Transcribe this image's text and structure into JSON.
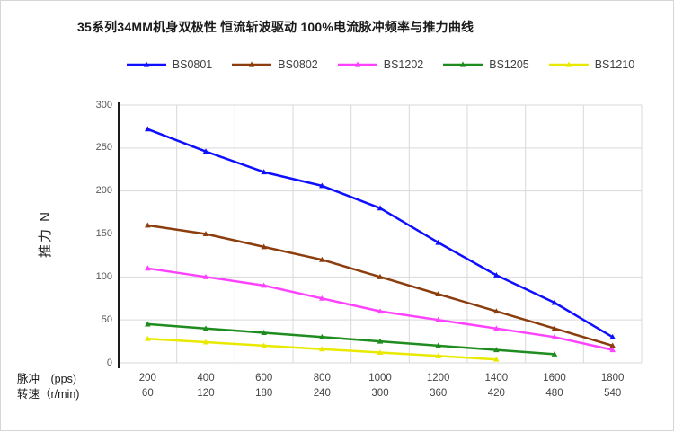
{
  "chart_data": {
    "type": "line",
    "title": "35系列34MM机身双极性 恒流斩波驱动 100%电流脉冲频率与推力曲线",
    "ylabel": "推力  N",
    "xlabel_row1": "脉冲　(pps)",
    "xlabel_row2": "转速（r/min)",
    "x_pps": [
      200,
      400,
      600,
      800,
      1000,
      1200,
      1400,
      1600,
      1800
    ],
    "x_rpm": [
      60,
      120,
      180,
      240,
      300,
      360,
      420,
      480,
      540
    ],
    "y_ticks": [
      300,
      250,
      200,
      150,
      100,
      50,
      0
    ],
    "ylim": [
      0,
      300
    ],
    "grid": true,
    "legend_position": "top",
    "marker": "triangle",
    "gridline_color": "#d9d9d9",
    "axis_color": "#1a1a1a",
    "series": [
      {
        "name": "BS0801",
        "color": "#0f0fff",
        "values": [
          272,
          246,
          222,
          206,
          180,
          140,
          102,
          70,
          30
        ]
      },
      {
        "name": "BS0802",
        "color": "#8b3d0e",
        "values": [
          160,
          150,
          135,
          120,
          100,
          80,
          60,
          40,
          20
        ]
      },
      {
        "name": "BS1202",
        "color": "#ff42ff",
        "values": [
          110,
          100,
          90,
          75,
          60,
          50,
          40,
          30,
          15
        ]
      },
      {
        "name": "BS1205",
        "color": "#1f8c1f",
        "values": [
          45,
          40,
          35,
          30,
          25,
          20,
          15,
          10,
          null
        ]
      },
      {
        "name": "BS1210",
        "color": "#e9e900",
        "values": [
          28,
          24,
          20,
          16,
          12,
          8,
          4,
          null,
          null
        ]
      }
    ]
  }
}
